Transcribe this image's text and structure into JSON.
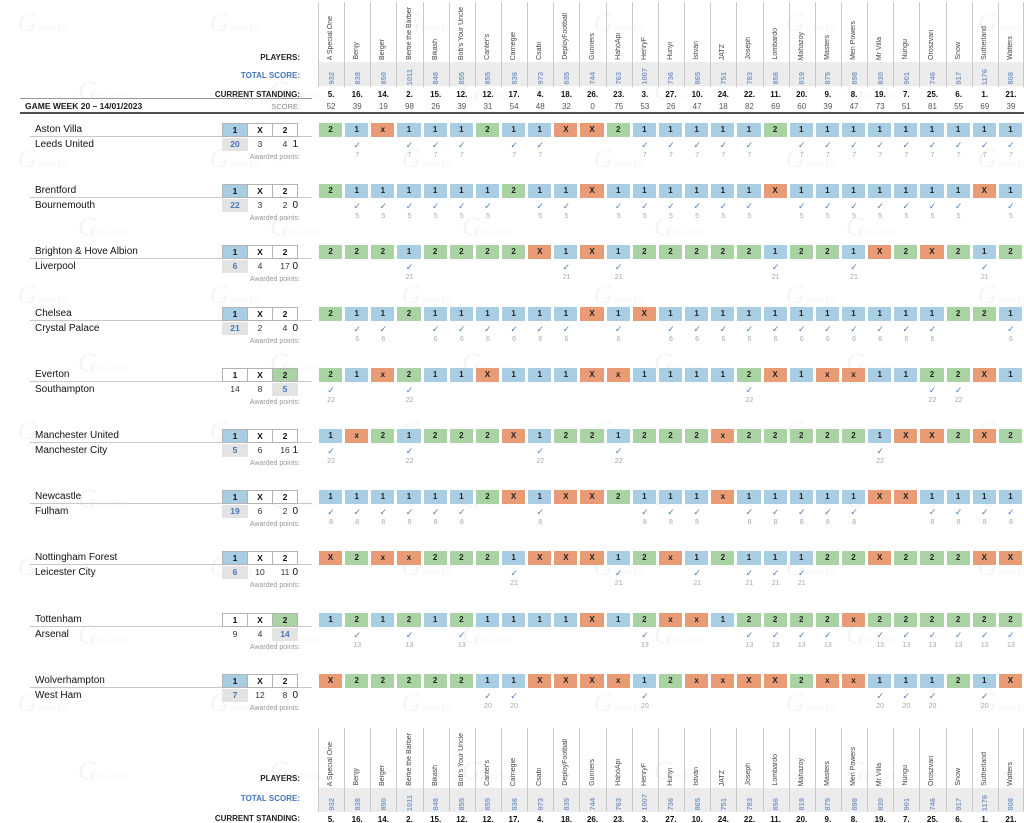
{
  "labels": {
    "players": "PLAYERS:",
    "total_score": "TOTAL SCORE:",
    "current_standing": "CURRENT STANDING:",
    "score": "SCORE:",
    "gameweek": "GAME WEEK 20 – 14/01/2023",
    "awarded_points": "Awarded points:",
    "box_headers": [
      "1",
      "X",
      "2"
    ],
    "check_mark": "✓"
  },
  "decor": {
    "watermark_text": "works"
  },
  "colors": {
    "pick_home_blue": "#a9cee3",
    "pick_draw_orange": "#e89b74",
    "pick_away_green": "#a9d3a2",
    "accent_blue": "#4577b8",
    "total_score_text": "#7e9bc9",
    "band_gray": "#ececec",
    "count_chip_gray": "#e3e3e3",
    "check_blue": "#4d7ebe"
  },
  "players": [
    {
      "name": "A Special One",
      "total": "932",
      "standing": "5.",
      "score": "52"
    },
    {
      "name": "Benjy",
      "total": "838",
      "standing": "16.",
      "score": "39"
    },
    {
      "name": "Berger",
      "total": "850",
      "standing": "14.",
      "score": "19"
    },
    {
      "name": "Bertie the Barber",
      "total": "1011",
      "standing": "2.",
      "score": "98"
    },
    {
      "name": "Bikash",
      "total": "848",
      "standing": "15.",
      "score": "26"
    },
    {
      "name": "Bob's Your Uncle",
      "total": "855",
      "standing": "12.",
      "score": "39"
    },
    {
      "name": "Canter's",
      "total": "855",
      "standing": "12.",
      "score": "31"
    },
    {
      "name": "Carnegie",
      "total": "836",
      "standing": "17.",
      "score": "54"
    },
    {
      "name": "Csabi",
      "total": "973",
      "standing": "4.",
      "score": "48"
    },
    {
      "name": "DeployFootball",
      "total": "835",
      "standing": "18.",
      "score": "32"
    },
    {
      "name": "Gunners",
      "total": "744",
      "standing": "26.",
      "score": "0"
    },
    {
      "name": "HahóApi",
      "total": "763",
      "standing": "23.",
      "score": "75"
    },
    {
      "name": "HenryF",
      "total": "1007",
      "standing": "3.",
      "score": "53"
    },
    {
      "name": "Hunyi",
      "total": "736",
      "standing": "27.",
      "score": "26"
    },
    {
      "name": "István",
      "total": "865",
      "standing": "10.",
      "score": "47"
    },
    {
      "name": "JATZ",
      "total": "751",
      "standing": "24.",
      "score": "18"
    },
    {
      "name": "Joseph",
      "total": "783",
      "standing": "22.",
      "score": "82"
    },
    {
      "name": "Lombardo",
      "total": "856",
      "standing": "11.",
      "score": "69"
    },
    {
      "name": "Mahazoy",
      "total": "819",
      "standing": "20.",
      "score": "60"
    },
    {
      "name": "Masters",
      "total": "875",
      "standing": "9.",
      "score": "39"
    },
    {
      "name": "Men Powers",
      "total": "898",
      "standing": "8.",
      "score": "47"
    },
    {
      "name": "Mr Villa",
      "total": "830",
      "standing": "19.",
      "score": "73"
    },
    {
      "name": "Nungu",
      "total": "901",
      "standing": "7.",
      "score": "51"
    },
    {
      "name": "Oroszvari",
      "total": "746",
      "standing": "25.",
      "score": "81"
    },
    {
      "name": "Snow",
      "total": "917",
      "standing": "6.",
      "score": "55"
    },
    {
      "name": "Sutherland",
      "total": "1176",
      "standing": "1.",
      "score": "69"
    },
    {
      "name": "Watters",
      "total": "808",
      "standing": "21.",
      "score": "39"
    }
  ],
  "matches": [
    {
      "home": "Aston Villa",
      "home_score": "2",
      "away": "Leeds United",
      "away_score": "1",
      "result": "1",
      "counts": [
        "20",
        "3",
        "4"
      ],
      "points": "7",
      "predictions": [
        "2",
        "1",
        "x",
        "1",
        "1",
        "1",
        "2",
        "1",
        "1",
        "X",
        "X",
        "2",
        "1",
        "1",
        "1",
        "1",
        "1",
        "2",
        "1",
        "1",
        "1",
        "1",
        "1",
        "1",
        "1",
        "1",
        "1"
      ]
    },
    {
      "home": "Brentford",
      "home_score": "2",
      "away": "Bournemouth",
      "away_score": "0",
      "result": "1",
      "counts": [
        "22",
        "3",
        "2"
      ],
      "points": "5",
      "predictions": [
        "2",
        "1",
        "1",
        "1",
        "1",
        "1",
        "1",
        "2",
        "1",
        "1",
        "X",
        "1",
        "1",
        "1",
        "1",
        "1",
        "1",
        "X",
        "1",
        "1",
        "1",
        "1",
        "1",
        "1",
        "1",
        "X",
        "1"
      ]
    },
    {
      "home": "Brighton & Hove Albion",
      "home_score": "3",
      "away": "Liverpool",
      "away_score": "0",
      "result": "1",
      "counts": [
        "6",
        "4",
        "17"
      ],
      "points": "21",
      "predictions": [
        "2",
        "2",
        "2",
        "1",
        "2",
        "2",
        "2",
        "2",
        "X",
        "1",
        "X",
        "1",
        "2",
        "2",
        "2",
        "2",
        "2",
        "1",
        "2",
        "2",
        "1",
        "X",
        "2",
        "X",
        "2",
        "1",
        "2"
      ]
    },
    {
      "home": "Chelsea",
      "home_score": "1",
      "away": "Crystal Palace",
      "away_score": "0",
      "result": "1",
      "counts": [
        "21",
        "2",
        "4"
      ],
      "points": "6",
      "predictions": [
        "2",
        "1",
        "1",
        "2",
        "1",
        "1",
        "1",
        "1",
        "1",
        "1",
        "X",
        "1",
        "X",
        "1",
        "1",
        "1",
        "1",
        "1",
        "1",
        "1",
        "1",
        "1",
        "1",
        "1",
        "2",
        "2",
        "1"
      ]
    },
    {
      "home": "Everton",
      "home_score": "1",
      "away": "Southampton",
      "away_score": "2",
      "result": "2",
      "counts": [
        "14",
        "8",
        "5"
      ],
      "points": "22",
      "predictions": [
        "2",
        "1",
        "x",
        "2",
        "1",
        "1",
        "X",
        "1",
        "1",
        "1",
        "X",
        "x",
        "1",
        "1",
        "1",
        "1",
        "2",
        "X",
        "1",
        "x",
        "x",
        "1",
        "1",
        "2",
        "2",
        "X",
        "1"
      ]
    },
    {
      "home": "Manchester United",
      "home_score": "2",
      "away": "Manchester City",
      "away_score": "1",
      "result": "1",
      "counts": [
        "5",
        "6",
        "16"
      ],
      "points": "22",
      "predictions": [
        "1",
        "x",
        "2",
        "1",
        "2",
        "2",
        "2",
        "X",
        "1",
        "2",
        "2",
        "1",
        "2",
        "2",
        "2",
        "x",
        "2",
        "2",
        "2",
        "2",
        "2",
        "1",
        "X",
        "X",
        "2",
        "X",
        "2"
      ]
    },
    {
      "home": "Newcastle",
      "home_score": "1",
      "away": "Fulham",
      "away_score": "0",
      "result": "1",
      "counts": [
        "19",
        "6",
        "2"
      ],
      "points": "8",
      "predictions": [
        "1",
        "1",
        "1",
        "1",
        "1",
        "1",
        "2",
        "X",
        "1",
        "X",
        "X",
        "2",
        "1",
        "1",
        "1",
        "x",
        "1",
        "1",
        "1",
        "1",
        "1",
        "X",
        "X",
        "1",
        "1",
        "1",
        "1"
      ]
    },
    {
      "home": "Nottingham Forest",
      "home_score": "2",
      "away": "Leicester City",
      "away_score": "0",
      "result": "1",
      "counts": [
        "6",
        "10",
        "11"
      ],
      "points": "21",
      "predictions": [
        "X",
        "2",
        "x",
        "x",
        "2",
        "2",
        "2",
        "1",
        "X",
        "X",
        "X",
        "1",
        "2",
        "x",
        "1",
        "2",
        "1",
        "1",
        "1",
        "2",
        "2",
        "X",
        "2",
        "2",
        "2",
        "X",
        "X"
      ]
    },
    {
      "home": "Tottenham",
      "home_score": "0",
      "away": "Arsenal",
      "away_score": "2",
      "result": "2",
      "counts": [
        "9",
        "4",
        "14"
      ],
      "points": "13",
      "predictions": [
        "1",
        "2",
        "1",
        "2",
        "1",
        "2",
        "1",
        "1",
        "1",
        "1",
        "X",
        "1",
        "2",
        "x",
        "x",
        "1",
        "2",
        "2",
        "2",
        "2",
        "x",
        "2",
        "2",
        "2",
        "2",
        "2",
        "2"
      ]
    },
    {
      "home": "Wolverhampton",
      "home_score": "1",
      "away": "West Ham",
      "away_score": "0",
      "result": "1",
      "counts": [
        "7",
        "12",
        "8"
      ],
      "points": "20",
      "predictions": [
        "X",
        "2",
        "2",
        "2",
        "2",
        "2",
        "1",
        "1",
        "X",
        "X",
        "X",
        "x",
        "1",
        "2",
        "x",
        "x",
        "X",
        "X",
        "2",
        "x",
        "x",
        "1",
        "1",
        "1",
        "2",
        "1",
        "X"
      ]
    }
  ]
}
